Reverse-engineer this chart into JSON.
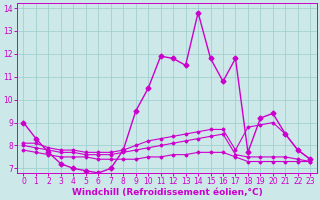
{
  "xlabel": "Windchill (Refroidissement éolien,°C)",
  "background_color": "#cce8e8",
  "line_color": "#cc00cc",
  "xlim": [
    -0.5,
    23.5
  ],
  "ylim": [
    6.8,
    14.2
  ],
  "yticks": [
    7,
    8,
    9,
    10,
    11,
    12,
    13,
    14
  ],
  "xticks": [
    0,
    1,
    2,
    3,
    4,
    5,
    6,
    7,
    8,
    9,
    10,
    11,
    12,
    13,
    14,
    15,
    16,
    17,
    18,
    19,
    20,
    21,
    22,
    23
  ],
  "series": [
    {
      "x": [
        0,
        1,
        2,
        3,
        4,
        5,
        6,
        7,
        8,
        9,
        10,
        11,
        12,
        13,
        14,
        15,
        16,
        17,
        18,
        19,
        20,
        21,
        22,
        23
      ],
      "y": [
        9.0,
        8.3,
        7.7,
        7.2,
        7.0,
        6.9,
        6.8,
        7.0,
        7.8,
        9.5,
        10.5,
        11.9,
        11.8,
        11.5,
        13.8,
        11.8,
        10.8,
        11.8,
        7.7,
        9.2,
        9.4,
        8.5,
        7.8,
        7.4
      ],
      "marker": "D",
      "markersize": 2.5,
      "linewidth": 1.0
    },
    {
      "x": [
        0,
        1,
        2,
        3,
        4,
        5,
        6,
        7,
        8,
        9,
        10,
        11,
        12,
        13,
        14,
        15,
        16,
        17,
        18,
        19,
        20,
        21,
        22,
        23
      ],
      "y": [
        8.1,
        8.1,
        7.9,
        7.8,
        7.8,
        7.7,
        7.7,
        7.7,
        7.8,
        8.0,
        8.2,
        8.3,
        8.4,
        8.5,
        8.6,
        8.7,
        8.7,
        7.8,
        8.8,
        8.9,
        9.0,
        8.5,
        7.8,
        7.4
      ],
      "marker": "D",
      "markersize": 1.5,
      "linewidth": 0.8
    },
    {
      "x": [
        0,
        1,
        2,
        3,
        4,
        5,
        6,
        7,
        8,
        9,
        10,
        11,
        12,
        13,
        14,
        15,
        16,
        17,
        18,
        19,
        20,
        21,
        22,
        23
      ],
      "y": [
        8.0,
        7.9,
        7.8,
        7.7,
        7.7,
        7.6,
        7.6,
        7.6,
        7.7,
        7.8,
        7.9,
        8.0,
        8.1,
        8.2,
        8.3,
        8.4,
        8.5,
        7.6,
        7.5,
        7.5,
        7.5,
        7.5,
        7.4,
        7.3
      ],
      "marker": "D",
      "markersize": 1.5,
      "linewidth": 0.8
    },
    {
      "x": [
        0,
        1,
        2,
        3,
        4,
        5,
        6,
        7,
        8,
        9,
        10,
        11,
        12,
        13,
        14,
        15,
        16,
        17,
        18,
        19,
        20,
        21,
        22,
        23
      ],
      "y": [
        7.8,
        7.7,
        7.6,
        7.5,
        7.5,
        7.5,
        7.4,
        7.4,
        7.4,
        7.4,
        7.5,
        7.5,
        7.6,
        7.6,
        7.7,
        7.7,
        7.7,
        7.5,
        7.3,
        7.3,
        7.3,
        7.3,
        7.3,
        7.3
      ],
      "marker": "D",
      "markersize": 1.5,
      "linewidth": 0.8
    }
  ],
  "grid_color": "#99cccc",
  "tick_fontsize": 5.5,
  "label_fontsize": 6.5
}
